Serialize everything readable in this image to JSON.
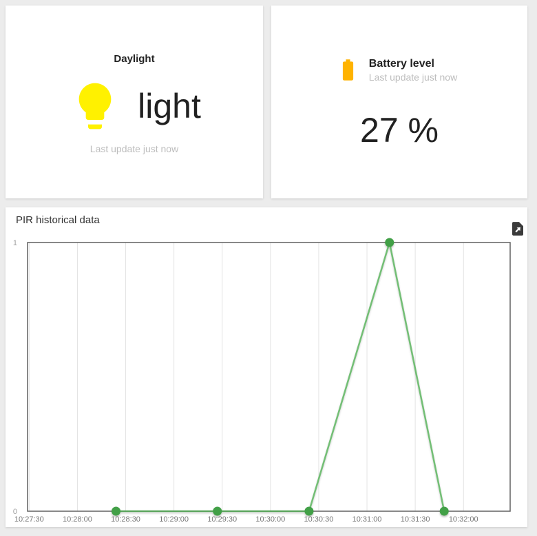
{
  "page": {
    "background": "#ececec",
    "card_background": "#ffffff"
  },
  "daylight_card": {
    "title": "Daylight",
    "value": "light",
    "last_update": "Last update just now",
    "icon": "lightbulb-icon",
    "icon_color": "#FFF100"
  },
  "battery_card": {
    "title": "Battery level",
    "last_update": "Last update just now",
    "value": "27 %",
    "icon": "battery-icon",
    "icon_color": "#FFB300"
  },
  "chart_card": {
    "title": "PIR historical data",
    "export_icon": "export-file-icon",
    "export_icon_color": "#3a3a3a"
  },
  "chart_data": {
    "type": "line",
    "title": "PIR historical data",
    "xlabel": "",
    "ylabel": "",
    "ylim": [
      0,
      1
    ],
    "y_tick_labels": [
      "0",
      "1"
    ],
    "x_domain_seconds": [
      -1,
      299
    ],
    "x_tick_seconds": [
      0,
      30,
      60,
      90,
      120,
      150,
      180,
      210,
      240,
      270
    ],
    "x_tick_labels": [
      "10:27:30",
      "10:28:00",
      "10:28:30",
      "10:29:00",
      "10:29:30",
      "10:30:00",
      "10:30:30",
      "10:31:00",
      "10:31:30",
      "10:32:00"
    ],
    "grid": "vertical-only",
    "legend_position": "none",
    "axis_color": "#606060",
    "gridline_color": "#e3e3e3",
    "x_tick_label_color": "#757575",
    "y_tick_label_color": "#9e9e9e",
    "series": [
      {
        "name": "PIR",
        "line_color": "#4CAF50",
        "line_opacity": 0.75,
        "point_color": "#43A047",
        "points": [
          {
            "time": "10:28:24",
            "t_seconds": 54,
            "value": 0
          },
          {
            "time": "10:29:27",
            "t_seconds": 117,
            "value": 0
          },
          {
            "time": "10:30:24",
            "t_seconds": 174,
            "value": 0
          },
          {
            "time": "10:31:14",
            "t_seconds": 224,
            "value": 1
          },
          {
            "time": "10:31:48",
            "t_seconds": 258,
            "value": 0
          }
        ]
      }
    ]
  }
}
